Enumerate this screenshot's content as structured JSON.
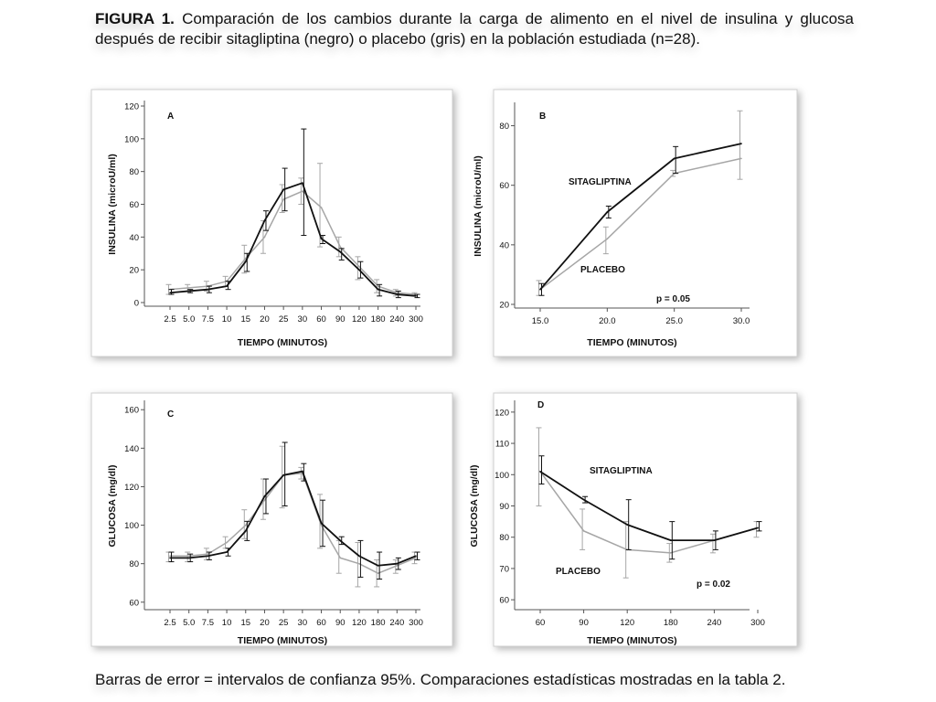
{
  "figure": {
    "caption_label": "FIGURA 1.",
    "caption_text": "Comparación de los cambios durante la carga de alimento en el nivel de insulina y glucosa después de recibir sitagliptina (negro) o placebo (gris) en la población estudiada (n=28).",
    "footnote": "Barras de error = intervalos de confianza 95%. Comparaciones estadísticas mostradas en la tabla 2.",
    "colors": {
      "sitagliptina": "#111111",
      "placebo": "#a6a6a6"
    }
  },
  "chart_data": [
    {
      "id": "A",
      "type": "line",
      "panel_letter": "A",
      "xlabel": "TIEMPO (MINUTOS)",
      "ylabel": "INSULINA (microU/ml)",
      "categories": [
        "2.5",
        "5.0",
        "7.5",
        "10",
        "15",
        "20",
        "25",
        "30",
        "60",
        "90",
        "120",
        "180",
        "240",
        "300"
      ],
      "yticks": [
        0,
        20,
        40,
        60,
        80,
        100,
        120
      ],
      "ylim": [
        0,
        120
      ],
      "series": [
        {
          "key": "sitagliptina",
          "values": [
            6,
            7,
            8,
            10,
            25,
            50,
            69,
            73,
            39,
            31,
            20,
            8,
            5,
            4
          ],
          "err": [
            [
              5,
              8
            ],
            [
              6,
              8
            ],
            [
              6,
              10
            ],
            [
              8,
              13
            ],
            [
              19,
              30
            ],
            [
              44,
              56
            ],
            [
              56,
              82
            ],
            [
              41,
              106
            ],
            [
              36,
              41
            ],
            [
              26,
              33
            ],
            [
              15,
              25
            ],
            [
              4,
              11
            ],
            [
              3,
              7
            ],
            [
              3,
              5
            ]
          ]
        },
        {
          "key": "placebo",
          "values": [
            8,
            9,
            10,
            13,
            27,
            40,
            63,
            68,
            58,
            34,
            22,
            10,
            6,
            5
          ],
          "err": [
            [
              5,
              11
            ],
            [
              7,
              11
            ],
            [
              7,
              13
            ],
            [
              10,
              16
            ],
            [
              18,
              35
            ],
            [
              30,
              50
            ],
            [
              55,
              72
            ],
            [
              60,
              76
            ],
            [
              34,
              85
            ],
            [
              28,
              40
            ],
            [
              14,
              28
            ],
            [
              6,
              14
            ],
            [
              4,
              8
            ],
            [
              4,
              6
            ]
          ]
        }
      ],
      "annotations": []
    },
    {
      "id": "B",
      "type": "line",
      "panel_letter": "B",
      "xlabel": "TIEMPO (MINUTOS)",
      "ylabel": "INSULINA (microU/ml)",
      "categories": [
        "15.0",
        "20.0",
        "25.0",
        "30.0"
      ],
      "yticks": [
        20,
        40,
        60,
        80
      ],
      "ylim": [
        20,
        86
      ],
      "series": [
        {
          "key": "sitagliptina",
          "name": "SITAGLIPTINA",
          "values": [
            25,
            51,
            69,
            74
          ],
          "err": [
            [
              23,
              27
            ],
            [
              49,
              53
            ],
            [
              64,
              73
            ],
            [
              null,
              null
            ]
          ]
        },
        {
          "key": "placebo",
          "name": "PLACEBO",
          "values": [
            25,
            42,
            64,
            69
          ],
          "err": [
            [
              23,
              28
            ],
            [
              37,
              46
            ],
            [
              63,
              65
            ],
            [
              62,
              85
            ]
          ]
        }
      ],
      "annotations": [
        {
          "text": "p = 0.05"
        }
      ]
    },
    {
      "id": "C",
      "type": "line",
      "panel_letter": "C",
      "xlabel": "TIEMPO (MINUTOS)",
      "ylabel": "GLUCOSA (mg/dl)",
      "categories": [
        "2.5",
        "5.0",
        "7.5",
        "10",
        "15",
        "20",
        "25",
        "30",
        "60",
        "90",
        "120",
        "180",
        "240",
        "300"
      ],
      "yticks": [
        60,
        80,
        100,
        120,
        140,
        160
      ],
      "ylim": [
        58,
        162
      ],
      "series": [
        {
          "key": "sitagliptina",
          "values": [
            83,
            83,
            84,
            86,
            97,
            115,
            126,
            128,
            101,
            92,
            84,
            79,
            80,
            84
          ],
          "err": [
            [
              81,
              86
            ],
            [
              81,
              85
            ],
            [
              82,
              86
            ],
            [
              84,
              88
            ],
            [
              92,
              102
            ],
            [
              106,
              124
            ],
            [
              110,
              143
            ],
            [
              123,
              132
            ],
            [
              89,
              113
            ],
            [
              90,
              94
            ],
            [
              73,
              92
            ],
            [
              72,
              86
            ],
            [
              77,
              83
            ],
            [
              82,
              86
            ]
          ]
        },
        {
          "key": "placebo",
          "values": [
            84,
            84,
            85,
            91,
            100,
            113,
            126,
            127,
            100,
            83,
            80,
            75,
            79,
            83
          ],
          "err": [
            [
              81,
              86
            ],
            [
              81,
              86
            ],
            [
              82,
              88
            ],
            [
              88,
              94
            ],
            [
              93,
              108
            ],
            [
              103,
              124
            ],
            [
              109,
              141
            ],
            [
              124,
              130
            ],
            [
              88,
              116
            ],
            [
              75,
              92
            ],
            [
              68,
              91
            ],
            [
              68,
              82
            ],
            [
              75,
              82
            ],
            [
              80,
              86
            ]
          ]
        }
      ],
      "annotations": []
    },
    {
      "id": "D",
      "type": "line",
      "panel_letter": "D",
      "xlabel": "TIEMPO (MINUTOS)",
      "ylabel": "GLUCOSA (mg/dl)",
      "categories": [
        "60",
        "90",
        "120",
        "180",
        "240",
        "300"
      ],
      "yticks": [
        60,
        70,
        80,
        90,
        100,
        110,
        120
      ],
      "ylim": [
        58,
        122
      ],
      "series": [
        {
          "key": "sitagliptina",
          "name": "SITAGLIPTINA",
          "values": [
            101,
            92,
            84,
            79,
            79,
            83
          ],
          "err": [
            [
              97,
              106
            ],
            [
              91,
              93
            ],
            [
              76,
              92
            ],
            [
              73,
              85
            ],
            [
              76,
              82
            ],
            [
              82,
              85
            ]
          ]
        },
        {
          "key": "placebo",
          "name": "PLACEBO",
          "values": [
            101,
            82,
            76,
            75,
            79,
            83
          ],
          "err": [
            [
              90,
              115
            ],
            [
              76,
              89
            ],
            [
              67,
              85
            ],
            [
              72,
              78
            ],
            [
              75,
              81
            ],
            [
              80,
              85
            ]
          ]
        }
      ],
      "annotations": [
        {
          "text": "p = 0.02"
        }
      ]
    }
  ]
}
